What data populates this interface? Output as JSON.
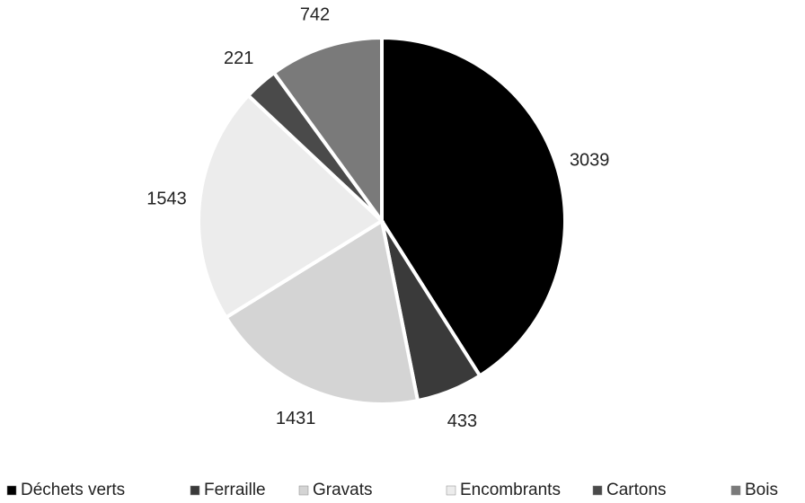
{
  "chart_data": {
    "type": "pie",
    "categories": [
      "Déchets verts",
      "Ferraille",
      "Gravats",
      "Encombrants",
      "Cartons",
      "Bois"
    ],
    "values": [
      3039,
      433,
      1431,
      1543,
      221,
      742
    ],
    "colors": [
      "#000000",
      "#3a3a3a",
      "#d4d4d4",
      "#ececec",
      "#4a4a4a",
      "#7a7a7a"
    ],
    "legend": "bottom"
  }
}
